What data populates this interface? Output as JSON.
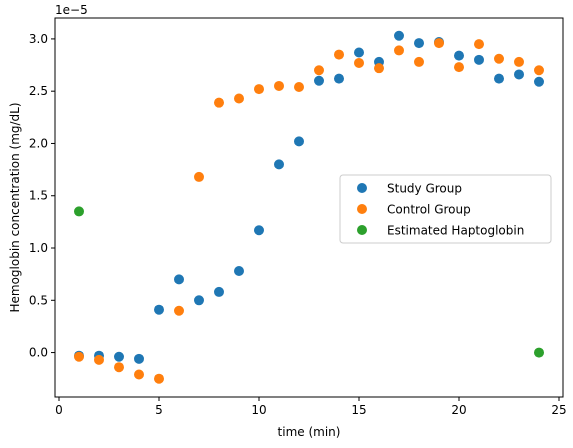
{
  "chart_data": {
    "type": "scatter",
    "title": "",
    "xlabel": "time (min)",
    "ylabel": "Hemoglobin concentration (mg/dL)",
    "y_offset_label": "1e−5",
    "xlim": [
      -0.2,
      25.2
    ],
    "ylim": [
      -0.425,
      3.2
    ],
    "x_ticks": [
      0,
      5,
      10,
      15,
      20,
      25
    ],
    "x_tick_labels": [
      "0",
      "5",
      "10",
      "15",
      "20",
      "25"
    ],
    "y_ticks": [
      0.0,
      0.5,
      1.0,
      1.5,
      2.0,
      2.5,
      3.0
    ],
    "y_tick_labels": [
      "0.0",
      "0.5",
      "1.0",
      "1.5",
      "2.0",
      "2.5",
      "3.0"
    ],
    "grid": false,
    "legend_position": "center-right",
    "series": [
      {
        "name": "Study Group",
        "color": "#1f77b4",
        "x": [
          1,
          2,
          3,
          4,
          5,
          6,
          7,
          8,
          9,
          10,
          11,
          12,
          13,
          14,
          15,
          16,
          17,
          18,
          19,
          20,
          21,
          22,
          23,
          24
        ],
        "y": [
          -0.03,
          -0.03,
          -0.04,
          -0.06,
          0.41,
          0.7,
          0.5,
          0.58,
          0.78,
          1.17,
          1.8,
          2.02,
          2.6,
          2.62,
          2.87,
          2.78,
          3.03,
          2.96,
          2.97,
          2.84,
          2.8,
          2.62,
          2.66,
          2.59
        ]
      },
      {
        "name": "Control Group",
        "color": "#ff7f0e",
        "x": [
          1,
          2,
          3,
          4,
          5,
          6,
          7,
          8,
          9,
          10,
          11,
          12,
          13,
          14,
          15,
          16,
          17,
          18,
          19,
          20,
          21,
          22,
          23,
          24
        ],
        "y": [
          -0.04,
          -0.07,
          -0.14,
          -0.21,
          -0.25,
          0.4,
          1.68,
          2.39,
          2.43,
          2.52,
          2.55,
          2.54,
          2.7,
          2.85,
          2.77,
          2.72,
          2.89,
          2.78,
          2.96,
          2.73,
          2.95,
          2.81,
          2.78,
          2.7
        ]
      },
      {
        "name": "Estimated Haptoglobin",
        "color": "#2ca02c",
        "x": [
          1,
          24
        ],
        "y": [
          1.35,
          0.0
        ]
      }
    ]
  }
}
